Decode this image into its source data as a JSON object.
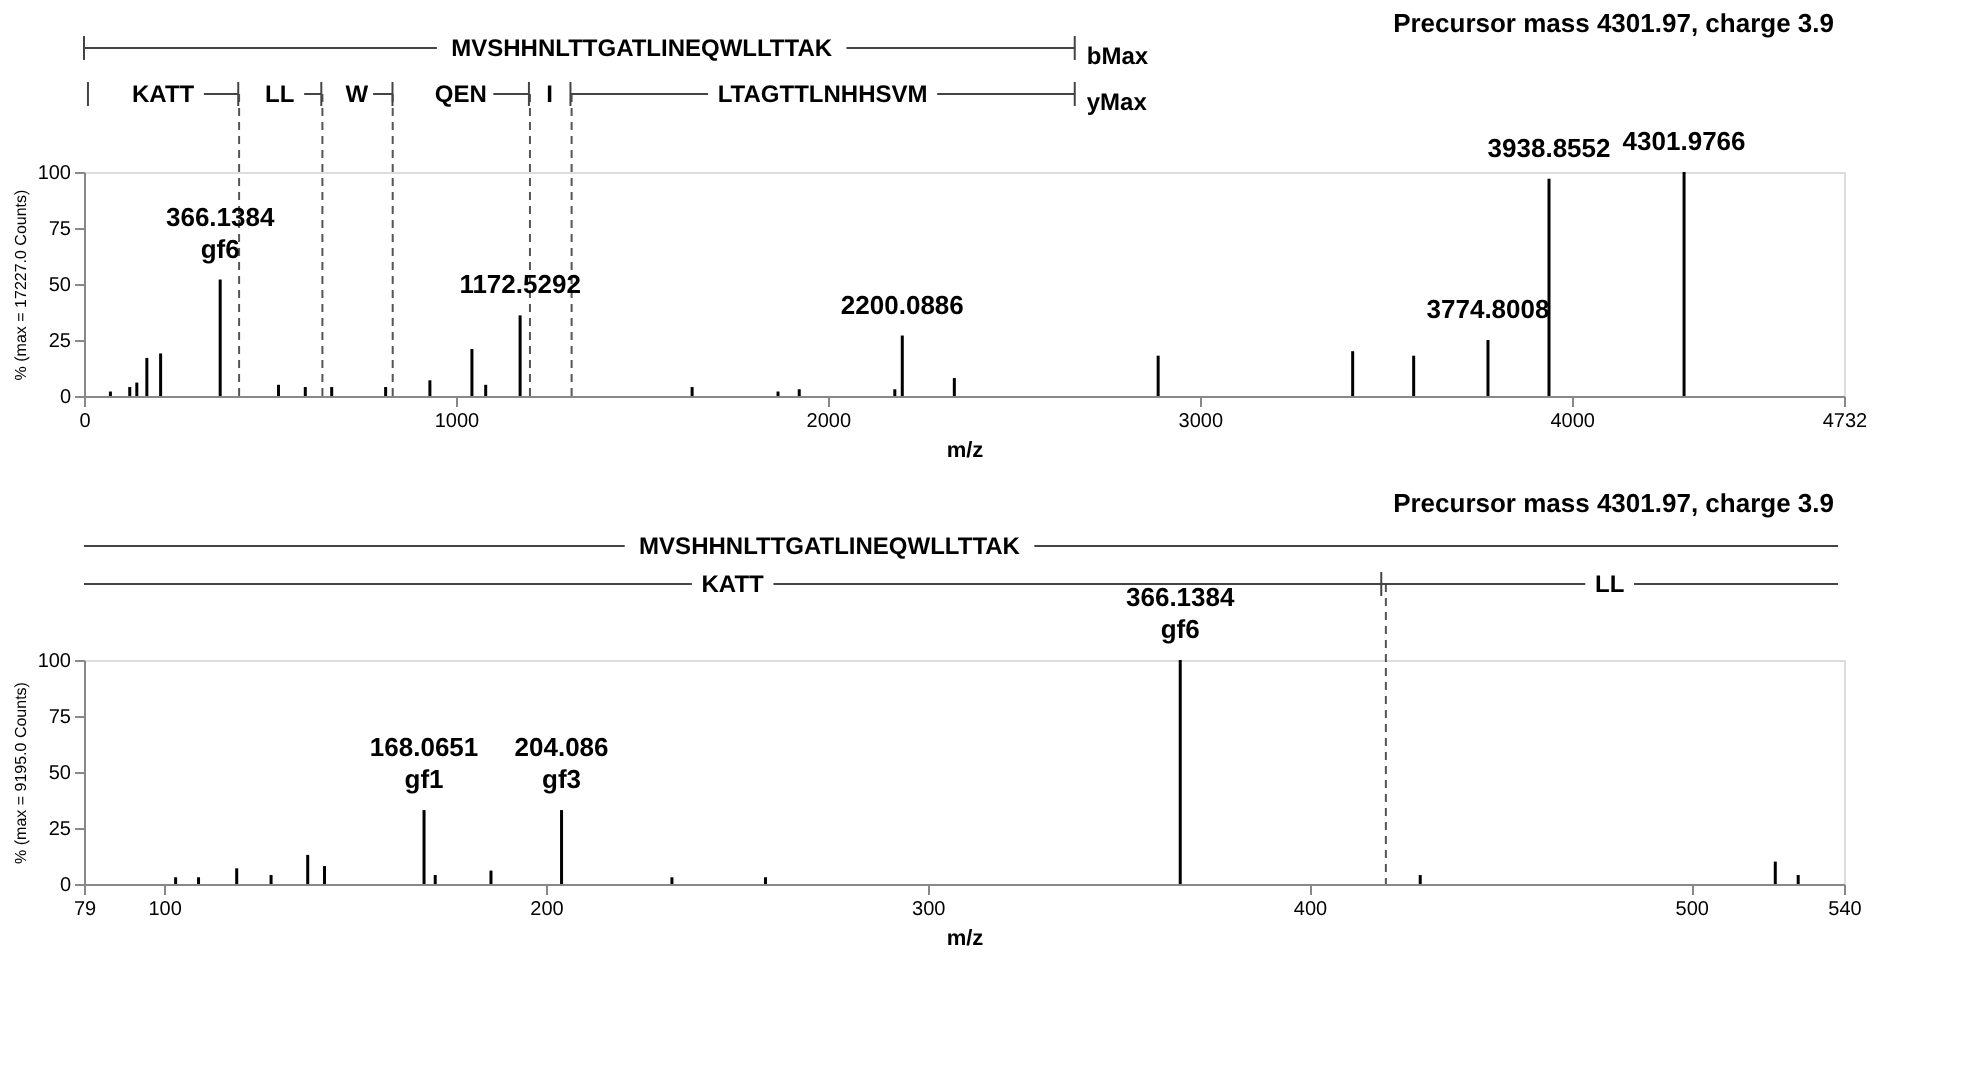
{
  "chart_data": [
    {
      "type": "bar",
      "title": "Precursor mass 4301.97, charge 3.9",
      "xlabel": "m/z",
      "ylabel": "% (max = 17227.0 Counts)",
      "x": [
        71,
        123,
        142,
        169,
        206,
        366.1384,
        523,
        595,
        666,
        811,
        930,
        1043,
        1080,
        1172.5292,
        1635,
        1866,
        1923,
        2180,
        2200.0886,
        2340,
        2888,
        3411,
        3575,
        3774.8008,
        3938.8552,
        4301.9766
      ],
      "values": [
        2,
        4,
        6,
        17,
        19,
        52,
        5,
        4,
        4,
        4,
        7,
        21,
        5,
        36,
        4,
        2,
        3,
        3,
        27,
        8,
        18,
        20,
        18,
        25,
        97,
        100
      ],
      "color": "#000000",
      "xlim": [
        0,
        4732
      ],
      "ylim": [
        0,
        100
      ],
      "xticks": [
        0,
        1000,
        2000,
        3000,
        4000,
        4732
      ],
      "yticks": [
        0,
        25,
        50,
        75,
        100
      ],
      "grid": false,
      "ref_lines": [
        {
          "axis": "x",
          "value": 417,
          "line_style": "dashed"
        },
        {
          "axis": "x",
          "value": 641,
          "line_style": "dashed"
        },
        {
          "axis": "x",
          "value": 830,
          "line_style": "dashed"
        },
        {
          "axis": "x",
          "value": 1199,
          "line_style": "dashed"
        },
        {
          "axis": "x",
          "value": 1311,
          "line_style": "dashed"
        }
      ],
      "annotations": [
        "MVSHHNLTTGATLINEQWLLTTAK",
        "bMax",
        "KATT",
        "LL",
        "W",
        "QEN",
        "I",
        "LTAGTTLNHHSVM",
        "yMax",
        {
          "text": "366.1384\ngf6",
          "x": 366.1384,
          "y": 52
        },
        {
          "text": "1172.5292",
          "x": 1172.5292,
          "y": 36
        },
        {
          "text": "2200.0886",
          "x": 2200.0886,
          "y": 27
        },
        {
          "text": "3774.8008",
          "x": 3774.8008,
          "y": 25
        },
        {
          "text": "3938.8552",
          "x": 3938.8552,
          "y": 97
        },
        {
          "text": "4301.9766",
          "x": 4301.9766,
          "y": 100
        }
      ]
    },
    {
      "type": "bar",
      "title": "Precursor mass 4301.97, charge 3.9",
      "xlabel": "m/z",
      "ylabel": "% (max = 9195.0 Counts)",
      "x": [
        103,
        109,
        119,
        128,
        137.6,
        142,
        168.0651,
        171,
        185.6,
        204.086,
        233,
        257.5,
        366.1384,
        429,
        522,
        528
      ],
      "values": [
        3,
        3,
        7,
        4,
        13,
        8,
        33,
        4,
        6,
        33,
        3,
        3,
        100,
        4,
        10,
        4
      ],
      "color": "#000000",
      "xlim": [
        79,
        540
      ],
      "ylim": [
        0,
        100
      ],
      "xticks": [
        79,
        100,
        200,
        300,
        400,
        500,
        540
      ],
      "yticks": [
        0,
        25,
        50,
        75,
        100
      ],
      "grid": false,
      "ref_lines": [
        {
          "axis": "x",
          "value": 420,
          "line_style": "dashed"
        }
      ],
      "annotations": [
        "MVSHHNLTTGATLINEQWLLTTAK",
        "KATT",
        "LL",
        {
          "text": "168.0651\ngf1",
          "x": 168.0651,
          "y": 33
        },
        {
          "text": "204.086\ngf3",
          "x": 204.086,
          "y": 33
        },
        {
          "text": "366.1384\ngf6",
          "x": 366.1384,
          "y": 100
        }
      ]
    }
  ]
}
